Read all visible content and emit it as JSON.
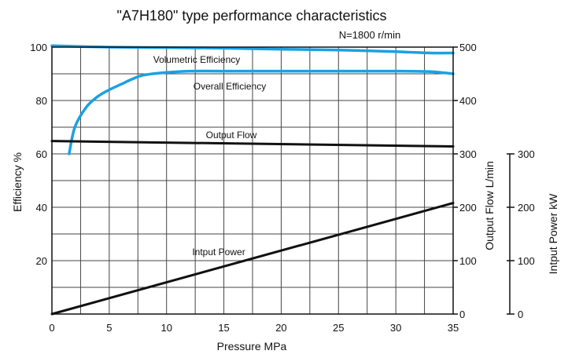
{
  "chart_data": {
    "type": "line",
    "title": "\"A7H180\" type performance characteristics",
    "subtitle": "N=1800 r/min",
    "xlabel": "Pressure  MPa",
    "xlim": [
      0,
      35
    ],
    "x_ticks": [
      "0",
      "5",
      "10",
      "15",
      "20",
      "25",
      "30",
      "35"
    ],
    "y_left": {
      "label": "Efficiency  %",
      "lim": [
        0,
        100
      ],
      "ticks": [
        "20",
        "40",
        "60",
        "80",
        "100"
      ]
    },
    "y_right1": {
      "label": "Output Flow  L/min",
      "lim": [
        0,
        500
      ],
      "ticks": [
        "0",
        "100",
        "200",
        "300",
        "400",
        "500"
      ]
    },
    "y_right2": {
      "label": "Intput Power  kW",
      "lim": [
        0,
        300
      ],
      "ticks": [
        "0",
        "100",
        "200",
        "300"
      ]
    },
    "grid": true,
    "series": [
      {
        "name": "Volumetric Efficiency",
        "axis": "left",
        "color": "#1ba1e2",
        "x": [
          0,
          5,
          10,
          15,
          20,
          25,
          30,
          33,
          35
        ],
        "y": [
          100.5,
          100,
          99.8,
          99.6,
          99.2,
          98.9,
          98.3,
          97.8,
          97.8
        ]
      },
      {
        "name": "Overall Efficiency",
        "axis": "left",
        "color": "#1ba1e2",
        "x": [
          1.5,
          2,
          3,
          4,
          5,
          6,
          7,
          8,
          10,
          12,
          15,
          20,
          25,
          30,
          33,
          35
        ],
        "y": [
          60,
          70,
          77.5,
          81.5,
          84,
          86,
          88,
          89.5,
          90.5,
          91,
          91,
          91,
          91,
          91,
          90.8,
          90
        ]
      },
      {
        "name": "Output Flow",
        "axis": "right1",
        "color": "#111111",
        "x": [
          0,
          35
        ],
        "y": [
          324,
          314
        ]
      },
      {
        "name": "Intput Power",
        "axis": "right2",
        "color": "#111111",
        "x": [
          0,
          35
        ],
        "y": [
          0,
          208
        ]
      }
    ]
  }
}
